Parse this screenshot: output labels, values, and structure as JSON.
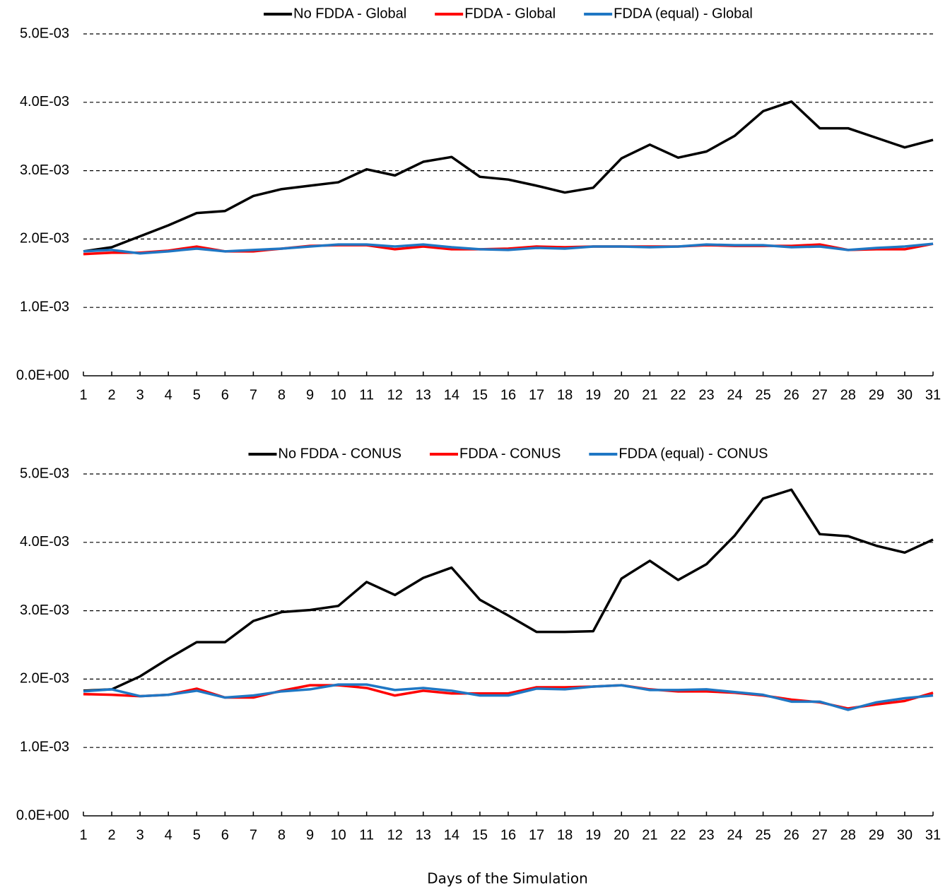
{
  "chart_data": [
    {
      "type": "line",
      "x": [
        1,
        2,
        3,
        4,
        5,
        6,
        7,
        8,
        9,
        10,
        11,
        12,
        13,
        14,
        15,
        16,
        17,
        18,
        19,
        20,
        21,
        22,
        23,
        24,
        25,
        26,
        27,
        28,
        29,
        30,
        31
      ],
      "xlim": [
        1,
        31
      ],
      "xticks": [
        1,
        2,
        3,
        4,
        5,
        6,
        7,
        8,
        9,
        10,
        11,
        12,
        13,
        14,
        15,
        16,
        17,
        18,
        19,
        20,
        21,
        22,
        23,
        24,
        25,
        26,
        27,
        28,
        29,
        30,
        31
      ],
      "ylim": [
        0,
        0.005
      ],
      "yticks": [
        {
          "value": 0,
          "label": "0.0E+00"
        },
        {
          "value": 0.001,
          "label": "1.0E-03"
        },
        {
          "value": 0.002,
          "label": "2.0E-03"
        },
        {
          "value": 0.003,
          "label": "3.0E-03"
        },
        {
          "value": 0.004,
          "label": "4.0E-03"
        },
        {
          "value": 0.005,
          "label": "5.0E-03"
        }
      ],
      "grid": true,
      "legend": "top",
      "series": [
        {
          "name": "No FDDA - Global",
          "color": "#000000",
          "values": [
            0.00182,
            0.00188,
            0.00204,
            0.0022,
            0.00238,
            0.00241,
            0.00263,
            0.00273,
            0.00278,
            0.00283,
            0.00302,
            0.00293,
            0.00313,
            0.0032,
            0.00291,
            0.00287,
            0.00278,
            0.00268,
            0.00275,
            0.00318,
            0.00338,
            0.00319,
            0.00328,
            0.00351,
            0.00387,
            0.00401,
            0.00362,
            0.00362,
            0.00348,
            0.00334,
            0.00345
          ]
        },
        {
          "name": "FDDA - Global",
          "color": "#ff0000",
          "values": [
            0.00178,
            0.0018,
            0.0018,
            0.00183,
            0.00189,
            0.00182,
            0.00182,
            0.00186,
            0.0019,
            0.00191,
            0.00191,
            0.00185,
            0.00189,
            0.00185,
            0.00185,
            0.00186,
            0.00189,
            0.00188,
            0.00189,
            0.00189,
            0.00189,
            0.00189,
            0.00191,
            0.0019,
            0.0019,
            0.0019,
            0.00192,
            0.00184,
            0.00185,
            0.00185,
            0.00193
          ]
        },
        {
          "name": "FDDA (equal) - Global",
          "color": "#1f77c4",
          "values": [
            0.00182,
            0.00184,
            0.00179,
            0.00182,
            0.00186,
            0.00182,
            0.00184,
            0.00186,
            0.00189,
            0.00192,
            0.00192,
            0.00189,
            0.00192,
            0.00188,
            0.00185,
            0.00184,
            0.00187,
            0.00186,
            0.00189,
            0.00189,
            0.00188,
            0.00189,
            0.00192,
            0.00191,
            0.00191,
            0.00188,
            0.00189,
            0.00184,
            0.00187,
            0.00189,
            0.00193
          ]
        }
      ]
    },
    {
      "type": "line",
      "x": [
        1,
        2,
        3,
        4,
        5,
        6,
        7,
        8,
        9,
        10,
        11,
        12,
        13,
        14,
        15,
        16,
        17,
        18,
        19,
        20,
        21,
        22,
        23,
        24,
        25,
        26,
        27,
        28,
        29,
        30,
        31
      ],
      "xlim": [
        1,
        31
      ],
      "xticks": [
        1,
        2,
        3,
        4,
        5,
        6,
        7,
        8,
        9,
        10,
        11,
        12,
        13,
        14,
        15,
        16,
        17,
        18,
        19,
        20,
        21,
        22,
        23,
        24,
        25,
        26,
        27,
        28,
        29,
        30,
        31
      ],
      "xlabel": "Days of the Simulation",
      "ylim": [
        0,
        0.005
      ],
      "yticks": [
        {
          "value": 0,
          "label": "0.0E+00"
        },
        {
          "value": 0.001,
          "label": "1.0E-03"
        },
        {
          "value": 0.002,
          "label": "2.0E-03"
        },
        {
          "value": 0.003,
          "label": "3.0E-03"
        },
        {
          "value": 0.004,
          "label": "4.0E-03"
        },
        {
          "value": 0.005,
          "label": "5.0E-03"
        }
      ],
      "grid": true,
      "legend": "top",
      "series": [
        {
          "name": "No FDDA - CONUS",
          "color": "#000000",
          "values": [
            0.00183,
            0.00185,
            0.00204,
            0.0023,
            0.00254,
            0.00254,
            0.00285,
            0.00298,
            0.00301,
            0.00307,
            0.00342,
            0.00323,
            0.00348,
            0.00363,
            0.00316,
            0.00293,
            0.00269,
            0.00269,
            0.0027,
            0.00347,
            0.00373,
            0.00345,
            0.00368,
            0.0041,
            0.00464,
            0.00477,
            0.00412,
            0.00409,
            0.00395,
            0.00385,
            0.00404
          ]
        },
        {
          "name": "FDDA - CONUS",
          "color": "#ff0000",
          "values": [
            0.00178,
            0.00177,
            0.00175,
            0.00177,
            0.00186,
            0.00173,
            0.00173,
            0.00183,
            0.00191,
            0.00191,
            0.00187,
            0.00176,
            0.00183,
            0.00179,
            0.00179,
            0.00179,
            0.00188,
            0.00188,
            0.00189,
            0.00191,
            0.00185,
            0.00182,
            0.00182,
            0.0018,
            0.00176,
            0.0017,
            0.00166,
            0.00157,
            0.00163,
            0.00168,
            0.0018
          ]
        },
        {
          "name": "FDDA (equal) - CONUS",
          "color": "#1f77c4",
          "values": [
            0.00182,
            0.00185,
            0.00175,
            0.00177,
            0.00183,
            0.00173,
            0.00176,
            0.00182,
            0.00185,
            0.00192,
            0.00192,
            0.00184,
            0.00187,
            0.00183,
            0.00176,
            0.00176,
            0.00186,
            0.00185,
            0.00189,
            0.00191,
            0.00184,
            0.00184,
            0.00185,
            0.00181,
            0.00177,
            0.00167,
            0.00167,
            0.00155,
            0.00166,
            0.00172,
            0.00176
          ]
        }
      ]
    }
  ]
}
